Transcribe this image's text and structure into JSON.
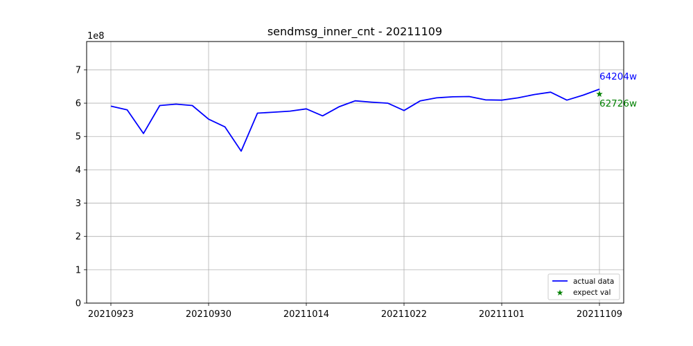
{
  "chart_data": {
    "type": "line",
    "title": "sendmsg_inner_cnt - 20211109",
    "y_offset_label": "1e8",
    "xlabel": "",
    "ylabel": "",
    "ylim": [
      0,
      7.85
    ],
    "yticks": [
      0,
      1,
      2,
      3,
      4,
      5,
      6,
      7
    ],
    "x_tick_labels": [
      "20210923",
      "20210930",
      "20211014",
      "20211022",
      "20211101",
      "20211109"
    ],
    "x_tick_indices": [
      0,
      6,
      12,
      18,
      24,
      30
    ],
    "grid": true,
    "legend_position": "lower-right",
    "colors": {
      "actual": "#0000ff",
      "expect": "#008000",
      "grid": "#b0b0b0"
    },
    "series": [
      {
        "name": "actual data",
        "marker": "line",
        "values": [
          5.91,
          5.8,
          5.09,
          5.93,
          5.97,
          5.93,
          5.52,
          5.29,
          4.56,
          5.7,
          5.73,
          5.76,
          5.83,
          5.62,
          5.89,
          6.07,
          6.03,
          6.0,
          5.78,
          6.07,
          6.16,
          6.19,
          6.2,
          6.1,
          6.09,
          6.16,
          6.26,
          6.33,
          6.09,
          6.24,
          6.42
        ]
      },
      {
        "name": "expect val",
        "marker": "star",
        "points": [
          {
            "x": 30,
            "y": 6.2726
          }
        ]
      }
    ],
    "annotations": [
      {
        "text": "64204w",
        "color": "#0000ff"
      },
      {
        "text": "62726w",
        "color": "#008000"
      }
    ]
  }
}
